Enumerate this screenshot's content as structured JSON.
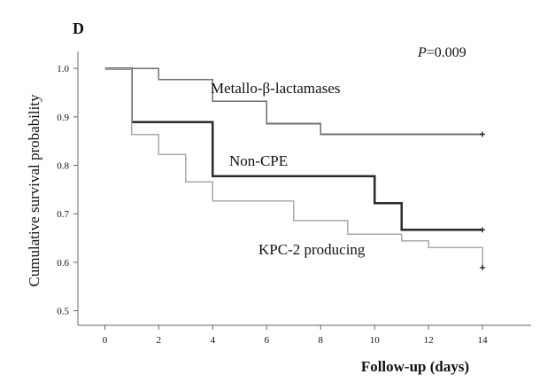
{
  "panel_label": "D",
  "p_value": {
    "prefix": "P",
    "suffix": "=0.009"
  },
  "chart_data": {
    "type": "line",
    "xlabel": "Follow-up (days)",
    "ylabel": "Cumulative survival probability",
    "xlim": [
      -1,
      15.8
    ],
    "ylim": [
      0.47,
      1.035
    ],
    "xticks": [
      "0",
      "2",
      "4",
      "6",
      "8",
      "10",
      "12",
      "14"
    ],
    "xtick_values": [
      0,
      2,
      4,
      6,
      8,
      10,
      12,
      14
    ],
    "yticks": [
      "0.5",
      "0.6",
      "0.7",
      "0.8",
      "0.9",
      "1.0"
    ],
    "ytick_values": [
      0.5,
      0.6,
      0.7,
      0.8,
      0.9,
      1.0
    ],
    "step": true,
    "series": [
      {
        "name": "Metallo-β-lactamases",
        "color": "#6f6f6f",
        "width": 1.6,
        "x": [
          0,
          2,
          4,
          6,
          8,
          14
        ],
        "y": [
          1.0,
          0.977,
          0.932,
          0.886,
          0.864,
          0.864
        ],
        "censored": [
          [
            14,
            0.864
          ]
        ]
      },
      {
        "name": "Non-CPE",
        "color": "#2b2b2b",
        "width": 2.4,
        "x": [
          0,
          1,
          4,
          10,
          11,
          14
        ],
        "y": [
          1.0,
          0.889,
          0.778,
          0.722,
          0.667,
          0.667
        ],
        "censored": [
          [
            14,
            0.667
          ]
        ]
      },
      {
        "name": "KPC-2 producing",
        "color": "#a8a8a8",
        "width": 1.5,
        "x": [
          0,
          1,
          2,
          3,
          4,
          7,
          9,
          11,
          12,
          14
        ],
        "y": [
          1.0,
          0.864,
          0.822,
          0.766,
          0.726,
          0.686,
          0.658,
          0.644,
          0.63,
          0.589
        ],
        "censored": [
          [
            14,
            0.589
          ]
        ]
      }
    ]
  }
}
